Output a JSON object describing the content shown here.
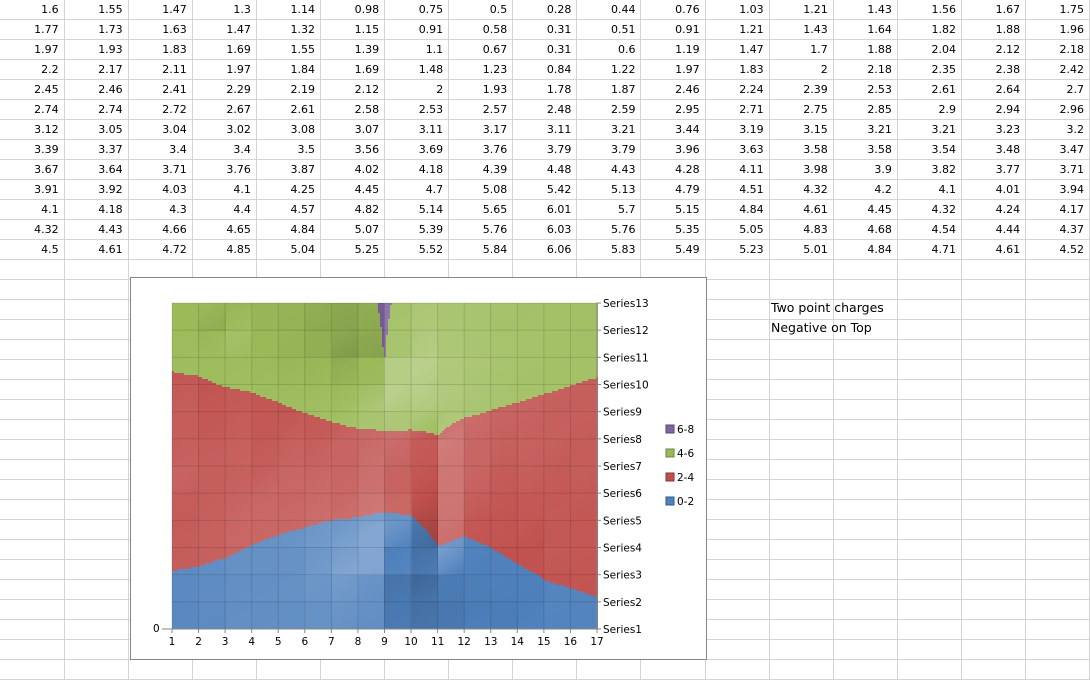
{
  "sheet": {
    "rows": [
      [
        "1.6",
        "1.55",
        "1.47",
        "1.3",
        "1.14",
        "0.98",
        "0.75",
        "0.5",
        "0.28",
        "0.44",
        "0.76",
        "1.03",
        "1.21",
        "1.43",
        "1.56",
        "1.67",
        "1.75"
      ],
      [
        "1.77",
        "1.73",
        "1.63",
        "1.47",
        "1.32",
        "1.15",
        "0.91",
        "0.58",
        "0.31",
        "0.51",
        "0.91",
        "1.21",
        "1.43",
        "1.64",
        "1.82",
        "1.88",
        "1.96"
      ],
      [
        "1.97",
        "1.93",
        "1.83",
        "1.69",
        "1.55",
        "1.39",
        "1.1",
        "0.67",
        "0.31",
        "0.6",
        "1.19",
        "1.47",
        "1.7",
        "1.88",
        "2.04",
        "2.12",
        "2.18"
      ],
      [
        "2.2",
        "2.17",
        "2.11",
        "1.97",
        "1.84",
        "1.69",
        "1.48",
        "1.23",
        "0.84",
        "1.22",
        "1.97",
        "1.83",
        "2",
        "2.18",
        "2.35",
        "2.38",
        "2.42"
      ],
      [
        "2.45",
        "2.46",
        "2.41",
        "2.29",
        "2.19",
        "2.12",
        "2",
        "1.93",
        "1.78",
        "1.87",
        "2.46",
        "2.24",
        "2.39",
        "2.53",
        "2.61",
        "2.64",
        "2.7"
      ],
      [
        "2.74",
        "2.74",
        "2.72",
        "2.67",
        "2.61",
        "2.58",
        "2.53",
        "2.57",
        "2.48",
        "2.59",
        "2.95",
        "2.71",
        "2.75",
        "2.85",
        "2.9",
        "2.94",
        "2.96"
      ],
      [
        "3.12",
        "3.05",
        "3.04",
        "3.02",
        "3.08",
        "3.07",
        "3.11",
        "3.17",
        "3.11",
        "3.21",
        "3.44",
        "3.19",
        "3.15",
        "3.21",
        "3.21",
        "3.23",
        "3.2"
      ],
      [
        "3.39",
        "3.37",
        "3.4",
        "3.4",
        "3.5",
        "3.56",
        "3.69",
        "3.76",
        "3.79",
        "3.79",
        "3.96",
        "3.63",
        "3.58",
        "3.58",
        "3.54",
        "3.48",
        "3.47"
      ],
      [
        "3.67",
        "3.64",
        "3.71",
        "3.76",
        "3.87",
        "4.02",
        "4.18",
        "4.39",
        "4.48",
        "4.43",
        "4.28",
        "4.11",
        "3.98",
        "3.9",
        "3.82",
        "3.77",
        "3.71"
      ],
      [
        "3.91",
        "3.92",
        "4.03",
        "4.1",
        "4.25",
        "4.45",
        "4.7",
        "5.08",
        "5.42",
        "5.13",
        "4.79",
        "4.51",
        "4.32",
        "4.2",
        "4.1",
        "4.01",
        "3.94"
      ],
      [
        "4.1",
        "4.18",
        "4.3",
        "4.4",
        "4.57",
        "4.82",
        "5.14",
        "5.65",
        "6.01",
        "5.7",
        "5.15",
        "4.84",
        "4.61",
        "4.45",
        "4.32",
        "4.24",
        "4.17"
      ],
      [
        "4.32",
        "4.43",
        "4.66",
        "4.65",
        "4.84",
        "5.07",
        "5.39",
        "5.76",
        "6.03",
        "5.76",
        "5.35",
        "5.05",
        "4.83",
        "4.68",
        "4.54",
        "4.44",
        "4.37"
      ],
      [
        "4.5",
        "4.61",
        "4.72",
        "4.85",
        "5.04",
        "5.25",
        "5.52",
        "5.84",
        "6.06",
        "5.83",
        "5.49",
        "5.23",
        "5.01",
        "4.84",
        "4.71",
        "4.61",
        "4.52"
      ]
    ]
  },
  "notes": {
    "line1": "Two point charges",
    "line2": "Negative on Top"
  },
  "colors": {
    "band_0_2": "#4f81bd",
    "band_2_4": "#c0504d",
    "band_4_6": "#9bbb59",
    "band_6_8": "#8064a2",
    "gridline": "#d4d4d4",
    "chart_border": "#868686"
  },
  "chart_data": {
    "type": "contour",
    "x_categories": [
      "1",
      "2",
      "3",
      "4",
      "5",
      "6",
      "7",
      "8",
      "9",
      "10",
      "11",
      "12",
      "13",
      "14",
      "15",
      "16",
      "17"
    ],
    "series_names": [
      "Series1",
      "Series2",
      "Series3",
      "Series4",
      "Series5",
      "Series6",
      "Series7",
      "Series8",
      "Series9",
      "Series10",
      "Series11",
      "Series12",
      "Series13"
    ],
    "z_axis_label": "0",
    "legend_position": "right",
    "legend": [
      {
        "label": "6-8",
        "color": "#8064a2",
        "range": [
          6,
          8
        ]
      },
      {
        "label": "4-6",
        "color": "#9bbb59",
        "range": [
          4,
          6
        ]
      },
      {
        "label": "2-4",
        "color": "#c0504d",
        "range": [
          2,
          4
        ]
      },
      {
        "label": "0-2",
        "color": "#4f81bd",
        "range": [
          0,
          2
        ]
      }
    ],
    "values_ref": "sheet.rows"
  }
}
